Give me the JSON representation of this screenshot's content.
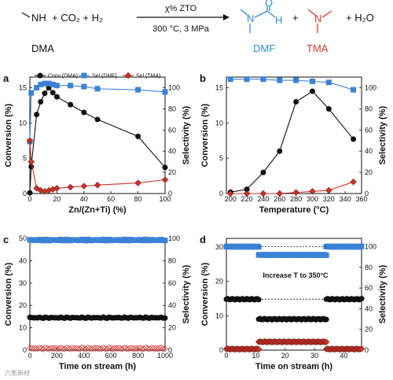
{
  "scheme": {
    "reactant": "NH",
    "reactant_label": "DMA",
    "reagents": "+ CO₂ + H₂",
    "catalyst": "χ% ZTO",
    "conditions": "300 °C, 3 MPa",
    "plus1": "+",
    "plus2": "+ H₂O",
    "product1_atoms": {
      "n": "N",
      "o": "O",
      "h": "H"
    },
    "product1_label": "DMF",
    "product2_atom": "N",
    "product2_label": "TMA",
    "colors": {
      "dmf": "#2f8fd8",
      "tma": "#d23b2f",
      "text": "#111111"
    }
  },
  "watermark": "六氪新材",
  "chart_data": [
    {
      "panel": "a",
      "type": "line",
      "xlabel": "Zn/(Zn+Ti) (%)",
      "ylabel": "Conversion (%)",
      "y2label": "Selectivity (%)",
      "xlim": [
        0,
        100
      ],
      "ylim": [
        0,
        16.5
      ],
      "y2lim": [
        0,
        110
      ],
      "xticks": [
        0,
        20,
        40,
        60,
        80,
        100
      ],
      "yticks": [
        0,
        5,
        10,
        15
      ],
      "y2ticks": [
        0,
        20,
        40,
        60,
        80,
        100
      ],
      "legend": {
        "placement": "top",
        "entries": [
          "Conv.(DMA)",
          "Sel.(DMF)",
          "Sel.(TMA)"
        ]
      },
      "series": [
        {
          "name": "Conv.(DMA)",
          "axis": "left",
          "color": "#111111",
          "marker": "circle",
          "x": [
            0,
            1,
            5,
            8,
            11,
            14,
            17,
            20,
            30,
            40,
            50,
            80,
            100
          ],
          "y": [
            0.1,
            3.8,
            11.2,
            13.0,
            14.2,
            15.0,
            14.3,
            13.7,
            12.6,
            11.5,
            10.5,
            8.1,
            3.7
          ]
        },
        {
          "name": "Sel.(DMF)",
          "axis": "right",
          "color": "#3b82d6",
          "marker": "square",
          "x": [
            0,
            1,
            5,
            8,
            11,
            14,
            17,
            20,
            30,
            40,
            50,
            80,
            100
          ],
          "y": [
            49,
            95,
            100,
            103,
            104,
            104,
            103,
            102,
            102,
            101,
            99,
            98,
            96
          ]
        },
        {
          "name": "Sel.(TMA)",
          "axis": "right",
          "color": "#c8342b",
          "marker": "diamond",
          "x": [
            0,
            1,
            5,
            8,
            11,
            14,
            17,
            20,
            30,
            40,
            50,
            80,
            100
          ],
          "y": [
            50,
            30,
            5,
            3,
            2,
            3,
            4,
            5,
            6,
            7,
            8,
            10,
            13
          ]
        }
      ]
    },
    {
      "panel": "b",
      "type": "line",
      "xlabel": "Temperature (°C)",
      "ylabel": "Conversion (%)",
      "y2label": "Selectivity (%)",
      "xlim": [
        195,
        360
      ],
      "ylim": [
        0,
        16.5
      ],
      "y2lim": [
        0,
        110
      ],
      "xticks": [
        200,
        220,
        240,
        260,
        280,
        300,
        320,
        340,
        360
      ],
      "yticks": [
        0,
        5,
        10,
        15
      ],
      "y2ticks": [
        0,
        20,
        40,
        60,
        80,
        100
      ],
      "series": [
        {
          "name": "Conv.(DMA)",
          "axis": "left",
          "color": "#111111",
          "marker": "circle",
          "x": [
            200,
            220,
            240,
            260,
            280,
            300,
            320,
            350
          ],
          "y": [
            0.2,
            0.6,
            3.0,
            6.0,
            13.0,
            14.5,
            12.0,
            7.7
          ]
        },
        {
          "name": "Sel.(DMF)",
          "axis": "right",
          "color": "#3b82d6",
          "marker": "square",
          "x": [
            200,
            220,
            240,
            260,
            280,
            300,
            320,
            350
          ],
          "y": [
            108,
            108,
            108,
            107,
            107,
            106,
            105,
            98
          ]
        },
        {
          "name": "Sel.(TMA)",
          "axis": "right",
          "color": "#c8342b",
          "marker": "diamond",
          "x": [
            200,
            220,
            240,
            260,
            280,
            300,
            320,
            350
          ],
          "y": [
            0,
            0,
            0,
            0,
            1,
            2,
            3,
            11
          ]
        }
      ]
    },
    {
      "panel": "c",
      "type": "scatter",
      "xlabel": "Time on stream (h)",
      "ylabel": "Conversion (%)",
      "y2label": "Selectivity (%)",
      "xlim": [
        0,
        1000
      ],
      "ylim": [
        0,
        50
      ],
      "y2lim": [
        0,
        100
      ],
      "xticks": [
        0,
        200,
        400,
        600,
        800,
        1000
      ],
      "yticks": [
        0,
        10,
        20,
        30,
        40,
        50
      ],
      "y2ticks": [
        0,
        20,
        40,
        60,
        80,
        100
      ],
      "series": [
        {
          "name": "Sel.(DMF)",
          "axis": "right",
          "color": "#3b82d6",
          "marker": "square",
          "x_range": [
            0,
            1000
          ],
          "level": 98.5
        },
        {
          "name": "Conv.(DMA)",
          "axis": "left",
          "color": "#111111",
          "marker": "circle",
          "x_range": [
            0,
            1000
          ],
          "level": 14.5
        },
        {
          "name": "Sel.(TMA)",
          "axis": "right",
          "color": "#c8342b",
          "marker": "diamond",
          "x_range": [
            0,
            1000
          ],
          "level": 1.5
        }
      ]
    },
    {
      "panel": "d",
      "type": "scatter",
      "xlabel": "Time on stream (h)",
      "ylabel": "Conversion (%)",
      "y2label": "Selectivity (%)",
      "xlim": [
        0,
        46
      ],
      "ylim": [
        0,
        32.5
      ],
      "y2lim": [
        0,
        108
      ],
      "xticks": [
        0,
        10,
        20,
        30,
        40
      ],
      "yticks": [
        0,
        10,
        20,
        30
      ],
      "y2ticks": [
        0,
        20,
        40,
        60,
        80,
        100
      ],
      "annotation": "Increase T to 350°C",
      "segments": [
        {
          "name": "Sel.(DMF)",
          "axis": "right",
          "color": "#3b82d6",
          "marker": "square",
          "pieces": [
            {
              "x": [
                0,
                11
              ],
              "y": 100
            },
            {
              "x": [
                11,
                34
              ],
              "y": 92
            },
            {
              "x": [
                34,
                46
              ],
              "y": 100
            }
          ]
        },
        {
          "name": "Conv.(DMA)",
          "axis": "left",
          "color": "#111111",
          "marker": "circle",
          "pieces": [
            {
              "x": [
                0,
                11
              ],
              "y": 14.8
            },
            {
              "x": [
                11,
                34
              ],
              "y": 9.0
            },
            {
              "x": [
                34,
                46
              ],
              "y": 14.8
            }
          ]
        },
        {
          "name": "Sel.(TMA)",
          "axis": "right",
          "color": "#c8342b",
          "marker": "diamond",
          "pieces": [
            {
              "x": [
                0,
                11
              ],
              "y": 1
            },
            {
              "x": [
                11,
                34
              ],
              "y": 8
            },
            {
              "x": [
                34,
                46
              ],
              "y": 1
            }
          ]
        }
      ]
    }
  ]
}
